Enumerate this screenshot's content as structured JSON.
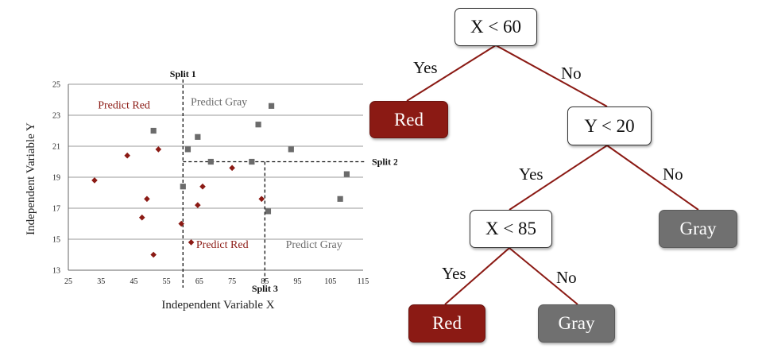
{
  "chart_data": {
    "type": "scatter",
    "xlabel": "Independent Variable X",
    "ylabel": "Independent Variable Y",
    "xlim": [
      25,
      115
    ],
    "ylim": [
      13,
      25
    ],
    "xticks": [
      "25",
      "35",
      "45",
      "55",
      "65",
      "75",
      "85",
      "95",
      "105",
      "115"
    ],
    "yticks": [
      "13",
      "15",
      "17",
      "19",
      "21",
      "23",
      "25"
    ],
    "grid": "horizontal",
    "series": [
      {
        "marker": "diamond",
        "color": "#8b1a14",
        "points": [
          [
            33,
            18.8
          ],
          [
            43,
            20.4
          ],
          [
            52.5,
            20.8
          ],
          [
            49,
            17.6
          ],
          [
            47.5,
            16.4
          ],
          [
            51,
            14
          ],
          [
            59.5,
            16
          ],
          [
            62.5,
            14.8
          ],
          [
            64.5,
            17.2
          ],
          [
            66,
            18.4
          ],
          [
            75,
            19.6
          ],
          [
            84,
            17.6
          ]
        ]
      },
      {
        "marker": "square",
        "color": "#6b6b6b",
        "points": [
          [
            51,
            22
          ],
          [
            61.5,
            20.8
          ],
          [
            64.5,
            21.6
          ],
          [
            68.5,
            20
          ],
          [
            81,
            20
          ],
          [
            83,
            22.4
          ],
          [
            87,
            23.6
          ],
          [
            93,
            20.8
          ],
          [
            86,
            16.8
          ],
          [
            108,
            17.6
          ],
          [
            110,
            19.2
          ],
          [
            60,
            18.4
          ]
        ]
      }
    ],
    "splits": [
      {
        "label": "Split 1",
        "axis": "x",
        "value": 60,
        "y_range": [
          13,
          25
        ]
      },
      {
        "label": "Split 2",
        "axis": "y",
        "value": 20,
        "x_range": [
          60,
          115
        ]
      },
      {
        "label": "Split 3",
        "axis": "x",
        "value": 85,
        "y_range": [
          13,
          20
        ]
      }
    ],
    "regions": [
      {
        "text": "Predict Red",
        "color": "#8b1a14",
        "x": 42,
        "y": 23.7
      },
      {
        "text": "Predict Gray",
        "color": "#6b6b6b",
        "x": 71,
        "y": 23.9
      },
      {
        "text": "Predict Red",
        "color": "#8b1a14",
        "x": 72,
        "y": 14.7
      },
      {
        "text": "Predict Gray",
        "color": "#6b6b6b",
        "x": 100,
        "y": 14.7
      }
    ]
  },
  "tree": {
    "nodes": {
      "root": "X < 60",
      "y20": "Y < 20",
      "x85": "X < 85",
      "leaf_red_1": "Red",
      "leaf_gray_1": "Gray",
      "leaf_red_2": "Red",
      "leaf_gray_2": "Gray"
    },
    "edges": {
      "root_yes": "Yes",
      "root_no": "No",
      "y20_yes": "Yes",
      "y20_no": "No",
      "x85_yes": "Yes",
      "x85_no": "No"
    },
    "colors": {
      "edge": "#8b1a14",
      "red_leaf": "#8b1a14",
      "gray_leaf": "#707070"
    }
  }
}
